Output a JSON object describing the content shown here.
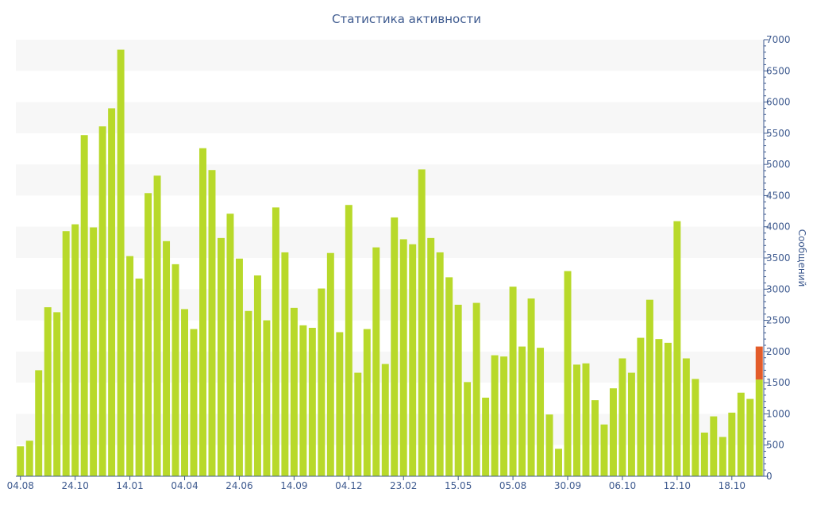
{
  "chart_data": {
    "type": "bar",
    "title": "Статистика активности",
    "xlabel": "",
    "ylabel": "Сообщений",
    "ylim": [
      0,
      7000
    ],
    "y_ticks": [
      0,
      500,
      1000,
      1500,
      2000,
      2500,
      3000,
      3500,
      4000,
      4500,
      5000,
      5500,
      6000,
      6500,
      7000
    ],
    "x_tick_labels": [
      "04.08",
      "24.10",
      "14.01",
      "04.04",
      "24.06",
      "14.09",
      "04.12",
      "23.02",
      "15.05",
      "05.08",
      "30.09",
      "06.10",
      "12.10",
      "18.10"
    ],
    "x_tick_bar_index": [
      0,
      6,
      12,
      18,
      24,
      30,
      36,
      42,
      48,
      54,
      60,
      66,
      72,
      78
    ],
    "grid": "horizontal bands",
    "legend": "none",
    "y_axis_side": "right",
    "colors": {
      "bar": "#b8d92a",
      "highlight": "#e35c2a",
      "band": "#f7f7f7",
      "axis": "#3e5a8f",
      "title": "#3e5a8f"
    },
    "series": [
      {
        "values": [
          480,
          570,
          1700,
          2710,
          2630,
          3930,
          4040,
          5470,
          3990,
          5610,
          5900,
          6840,
          3530,
          3170,
          4540,
          4820,
          3770,
          3400,
          2680,
          2360,
          5260,
          4910,
          3820,
          4210,
          3490,
          2650,
          3220,
          2500,
          4310,
          3590,
          2700,
          2420,
          2380,
          3010,
          3580,
          2310,
          4350,
          1660,
          2360,
          3670,
          1800,
          4150,
          3800,
          3720,
          4920,
          3820,
          3590,
          3190,
          2750,
          1510,
          2780,
          1260,
          1940,
          1920,
          3040,
          2080,
          2850,
          2060,
          990,
          440,
          3290,
          1790,
          1810,
          1220,
          830,
          1410,
          1890,
          1660,
          2220,
          2830,
          2200,
          2140,
          4090,
          1890,
          1560,
          700,
          960,
          630,
          1020,
          1340,
          1240,
          1550
        ]
      }
    ],
    "highlight": {
      "bar_index": 81,
      "from": 1550,
      "to": 2080
    }
  }
}
